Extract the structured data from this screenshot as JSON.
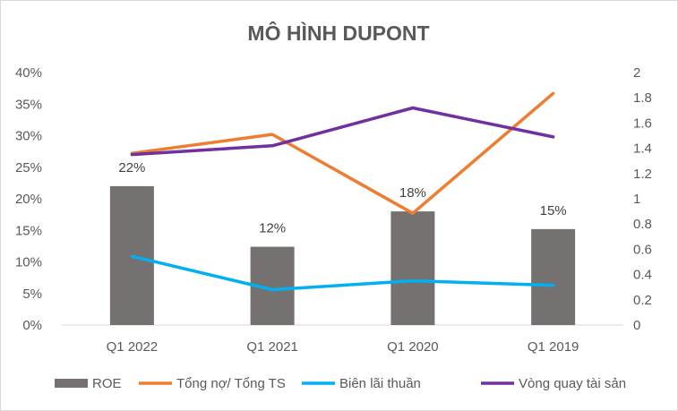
{
  "chart_data": {
    "type": "bar+line",
    "title": "MÔ HÌNH DUPONT",
    "categories": [
      "Q1 2022",
      "Q1 2021",
      "Q1 2020",
      "Q1 2019"
    ],
    "y_left": {
      "min": 0,
      "max": 40,
      "step": 5,
      "tick_labels": [
        "0%",
        "5%",
        "10%",
        "15%",
        "20%",
        "25%",
        "30%",
        "35%",
        "40%"
      ]
    },
    "y_right": {
      "min": 0,
      "max": 2,
      "step": 0.2,
      "tick_labels": [
        "0",
        "0.2",
        "0.4",
        "0.6",
        "0.8",
        "1",
        "1.2",
        "1.4",
        "1.6",
        "1.8",
        "2"
      ]
    },
    "series": [
      {
        "name": "ROE",
        "kind": "bar",
        "axis": "left",
        "color": "#767171",
        "values": [
          22,
          12.4,
          18,
          15.2
        ],
        "data_labels": [
          "22%",
          "12%",
          "18%",
          "15%"
        ]
      },
      {
        "name": "Tổng nợ/ Tổng TS",
        "kind": "line",
        "axis": "left",
        "color": "#ed7d31",
        "values": [
          27.2,
          30.2,
          17.7,
          36.7
        ]
      },
      {
        "name": "Biên lãi thuần",
        "kind": "line",
        "axis": "left",
        "color": "#00b0f0",
        "values": [
          10.9,
          5.6,
          7.0,
          6.3
        ]
      },
      {
        "name": "Vòng quay tài sản",
        "kind": "line",
        "axis": "right",
        "color": "#7030a0",
        "values": [
          1.35,
          1.42,
          1.72,
          1.49
        ]
      }
    ],
    "legend_position": "bottom",
    "grid": false
  }
}
